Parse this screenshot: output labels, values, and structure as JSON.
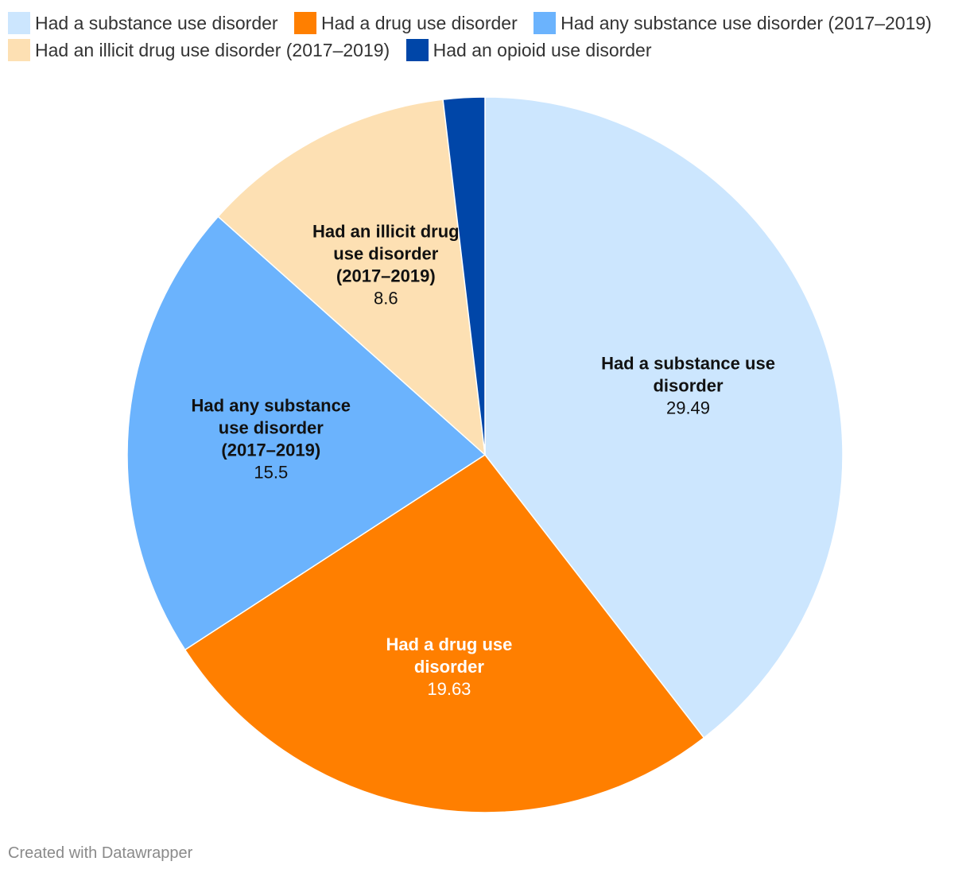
{
  "chart_data": {
    "type": "pie",
    "title": "",
    "slices": [
      {
        "label": "Had a substance use disorder",
        "value": 29.49,
        "value_label": "29.49",
        "color": "#cce6fe",
        "text_color": "#111111",
        "label_lines": [
          "Had a substance use",
          "disorder"
        ]
      },
      {
        "label": "Had a drug use disorder",
        "value": 19.63,
        "value_label": "19.63",
        "color": "#ff7f00",
        "text_color": "#ffffff",
        "label_lines": [
          "Had a drug use",
          "disorder"
        ]
      },
      {
        "label": "Had any substance use disorder (2017–2019)",
        "value": 15.5,
        "value_label": "15.5",
        "color": "#6bb3fd",
        "text_color": "#111111",
        "label_lines": [
          "Had any substance",
          "use disorder",
          "(2017–2019)"
        ]
      },
      {
        "label": "Had an illicit drug use disorder (2017–2019)",
        "value": 8.6,
        "value_label": "8.6",
        "color": "#fde0b3",
        "text_color": "#111111",
        "label_lines": [
          "Had an illicit drug",
          "use disorder",
          "(2017–2019)"
        ]
      },
      {
        "label": "Had an opioid use disorder",
        "value": 1.4,
        "value_label": "",
        "color": "#0046a8",
        "text_color": "#ffffff",
        "label_lines": []
      }
    ],
    "legend_position": "top"
  },
  "footer": {
    "credit": "Created with Datawrapper"
  }
}
